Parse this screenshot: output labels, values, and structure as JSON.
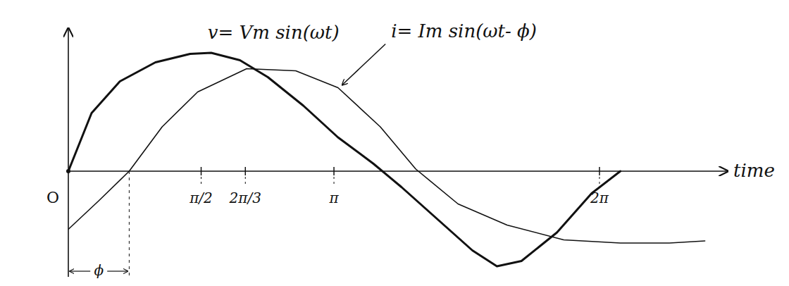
{
  "chart_data": {
    "type": "line",
    "x_label": "time",
    "xlim": [
      0,
      7.8
    ],
    "ylim": [
      -1,
      1.3
    ],
    "xticks": [
      {
        "value": 1.571,
        "label": "π/2"
      },
      {
        "value": 3.142,
        "label": "π"
      },
      {
        "value": 2.094,
        "label": "2π/3"
      },
      {
        "value": 6.283,
        "label": "2π"
      }
    ],
    "tick_labels": "x",
    "series": [
      {
        "name": "v= Vm sin(ωt)",
        "color": "#111111",
        "line_style": "thick",
        "x": [
          0,
          0.275,
          0.61,
          1.03,
          1.44,
          1.69,
          2.03,
          2.36,
          2.78,
          3.19,
          3.61,
          3.94,
          4.36,
          4.78,
          5.07,
          5.36,
          5.78,
          6.19,
          6.53
        ],
        "values": [
          0,
          0.55,
          0.85,
          1.03,
          1.11,
          1.12,
          1.05,
          0.89,
          0.62,
          0.32,
          0.07,
          -0.15,
          -0.45,
          -0.75,
          -0.9,
          -0.85,
          -0.58,
          -0.21,
          0
        ]
      },
      {
        "name": "i= Im sin(ωt- ϕ)",
        "color": "#111111",
        "line_style": "thin",
        "x": [
          0,
          0.36,
          0.72,
          1.11,
          1.53,
          2.11,
          2.69,
          3.19,
          3.69,
          4.11,
          4.61,
          5.19,
          5.86,
          6.53,
          7.11,
          7.53
        ],
        "values": [
          -0.55,
          -0.28,
          0,
          0.42,
          0.75,
          0.97,
          0.95,
          0.79,
          0.42,
          0.02,
          -0.31,
          -0.51,
          -0.65,
          -0.68,
          -0.68,
          -0.66
        ]
      }
    ],
    "annotations": [
      {
        "text": "O",
        "x": 0
      },
      {
        "text": "ϕ",
        "x": [
          0,
          0.72
        ]
      }
    ]
  }
}
